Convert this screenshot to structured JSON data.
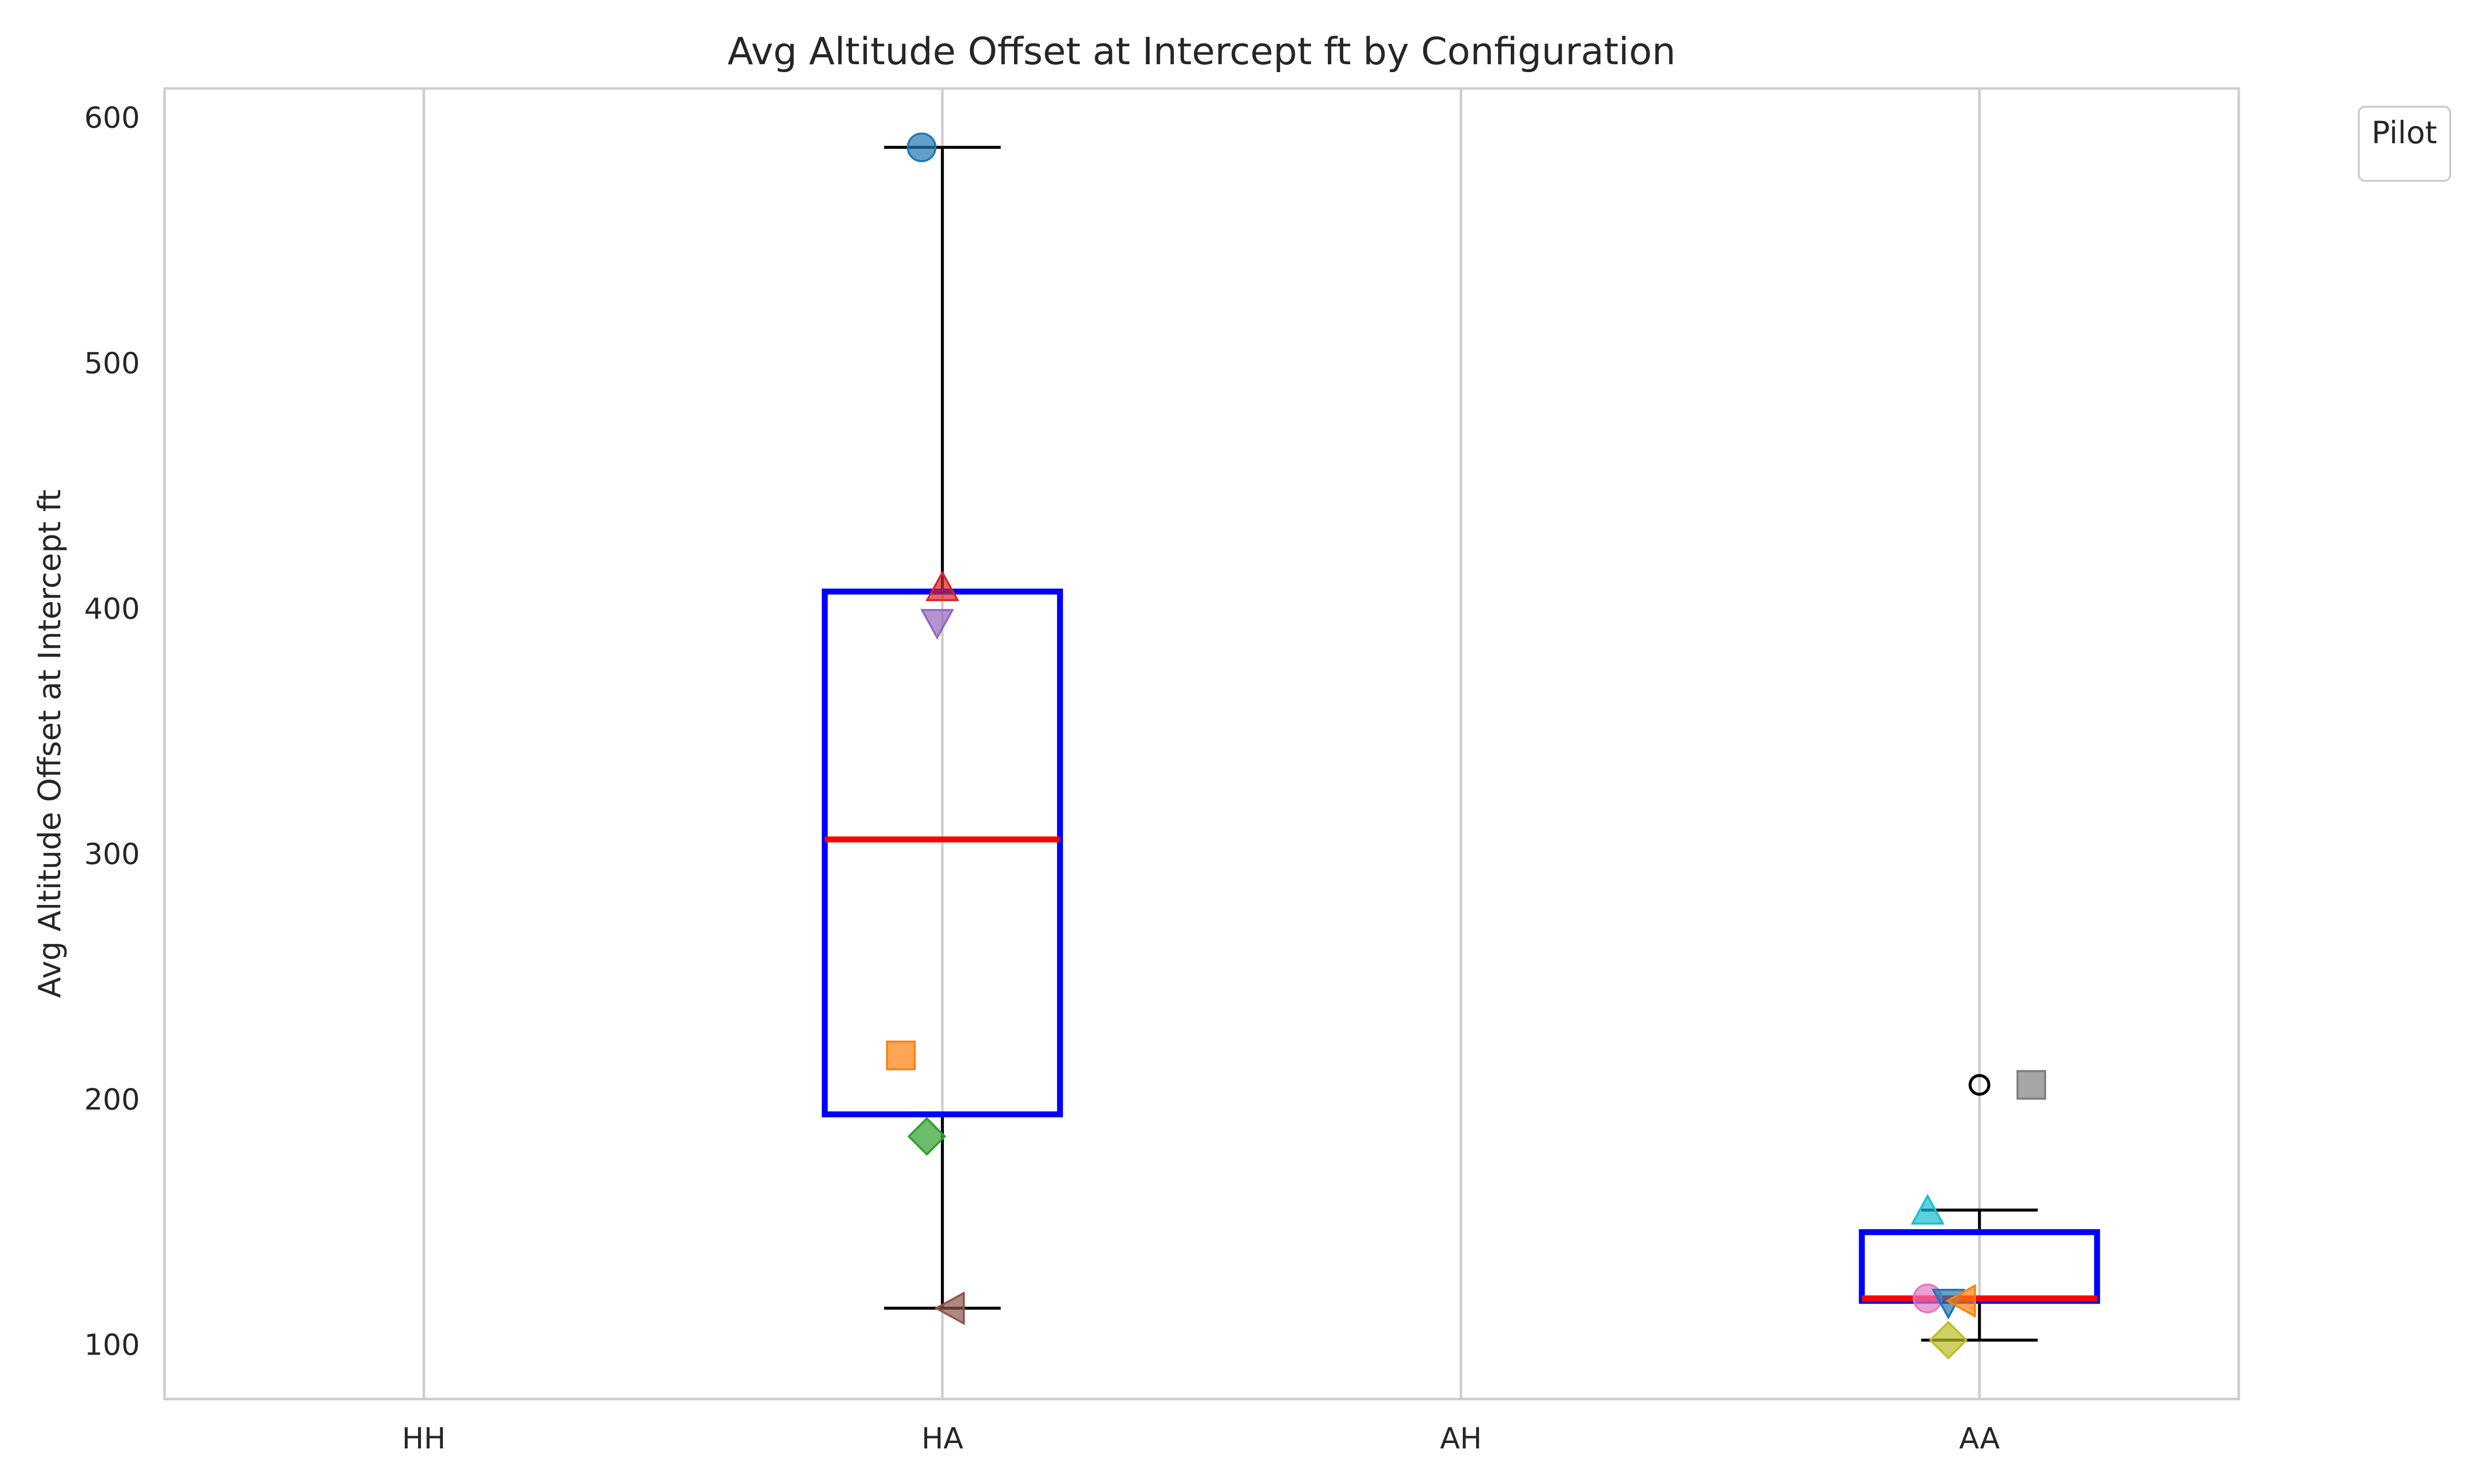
{
  "chart_data": {
    "type": "box",
    "title": "Avg Altitude Offset at Intercept ft by Configuration",
    "xlabel": "",
    "ylabel": "Avg Altitude Offset at Intercept ft",
    "categories": [
      "HH",
      "HA",
      "AH",
      "AA"
    ],
    "ylim": [
      78,
      612
    ],
    "yticks": [
      100,
      200,
      300,
      400,
      500,
      600
    ],
    "grid": "vertical",
    "legend": {
      "title": "Pilot",
      "placement": "top-right-outside",
      "entries": []
    },
    "boxes": [
      {
        "category": "HA",
        "whisker_low": 115,
        "q1": 194,
        "median": 306,
        "q3": 407,
        "whisker_high": 588,
        "outliers": []
      },
      {
        "category": "AA",
        "whisker_low": 102,
        "q1": 118,
        "median": 119,
        "q3": 146,
        "whisker_high": 155,
        "outliers": [
          206
        ]
      }
    ],
    "points": [
      {
        "category": "HA",
        "offset": -0.04,
        "y": 588,
        "marker": "circle",
        "color": "#1f77b4"
      },
      {
        "category": "HA",
        "offset": -0.08,
        "y": 218,
        "marker": "square",
        "color": "#ff7f0e"
      },
      {
        "category": "HA",
        "offset": -0.03,
        "y": 185,
        "marker": "diamond",
        "color": "#2ca02c"
      },
      {
        "category": "HA",
        "offset": 0.0,
        "y": 408,
        "marker": "triangle-up",
        "color": "#d62728"
      },
      {
        "category": "HA",
        "offset": -0.01,
        "y": 395,
        "marker": "triangle-down",
        "color": "#9467bd"
      },
      {
        "category": "HA",
        "offset": 0.02,
        "y": 115,
        "marker": "triangle-left",
        "color": "#8c564b"
      },
      {
        "category": "AA",
        "offset": -0.1,
        "y": 154,
        "marker": "triangle-up",
        "color": "#17becf"
      },
      {
        "category": "AA",
        "offset": -0.1,
        "y": 119,
        "marker": "circle",
        "color": "#e377c2"
      },
      {
        "category": "AA",
        "offset": -0.06,
        "y": 118,
        "marker": "triangle-down",
        "color": "#1f77b4"
      },
      {
        "category": "AA",
        "offset": -0.03,
        "y": 118,
        "marker": "triangle-left",
        "color": "#ff7f0e"
      },
      {
        "category": "AA",
        "offset": -0.06,
        "y": 102,
        "marker": "diamond",
        "color": "#bcbd22"
      },
      {
        "category": "AA",
        "offset": 0.1,
        "y": 206,
        "marker": "square",
        "color": "#7f7f7f"
      }
    ],
    "colors": {
      "box": "#0000ff",
      "median": "#ff0000",
      "whisker": "#000000",
      "grid": "#cccccc",
      "frame": "#cccccc"
    }
  }
}
